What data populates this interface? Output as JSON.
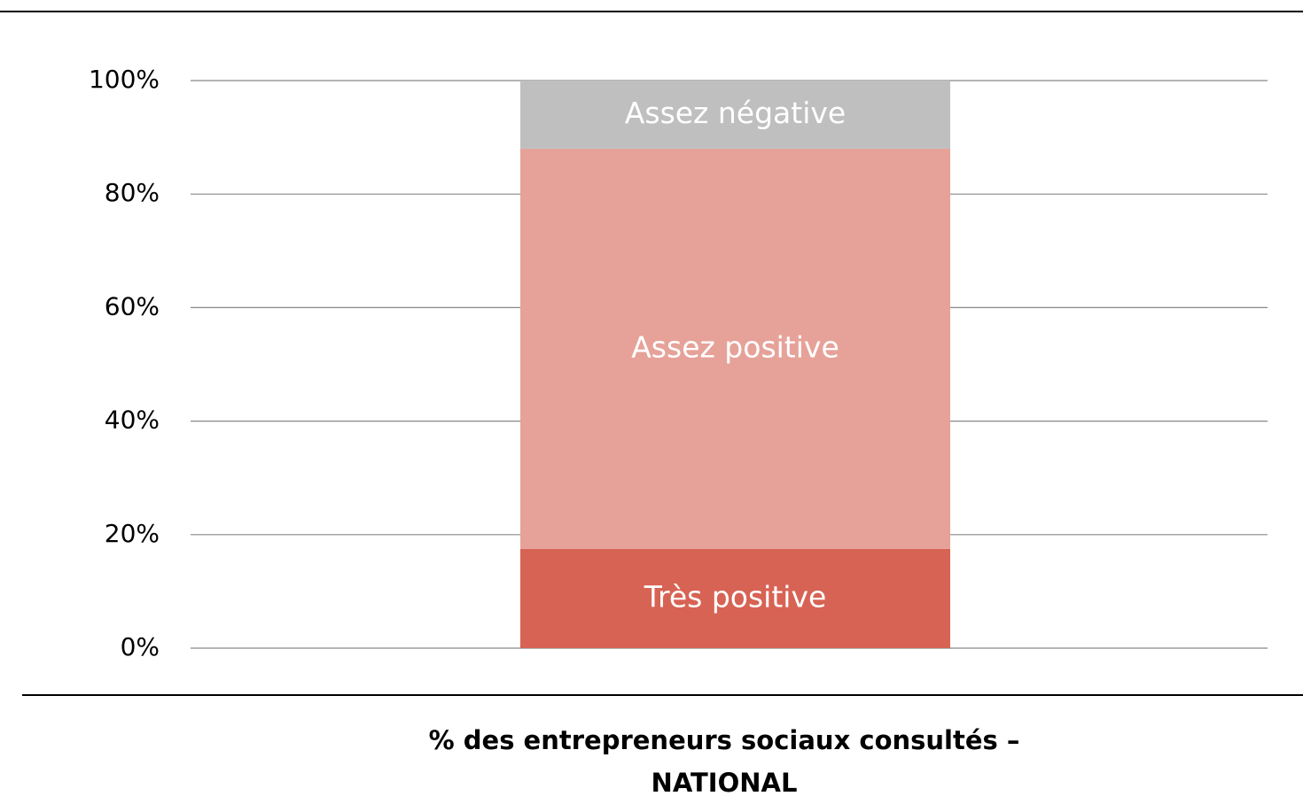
{
  "chart_data": {
    "type": "stacked_bar",
    "xlabel": "% des entrepreneurs sociaux consultés – NATIONAL",
    "categories": [
      null
    ],
    "series": [
      {
        "name": "Très positive",
        "color": "#d76354",
        "values": [
          17.5
        ]
      },
      {
        "name": "Assez positive",
        "color": "#e6a299",
        "values": [
          70.5
        ]
      },
      {
        "name": "Assez négative",
        "color": "#bfbfbf",
        "values": [
          12
        ]
      }
    ],
    "ylim": [
      0,
      100
    ],
    "yticks": [
      {
        "value": 0,
        "label": "0%"
      },
      {
        "value": 20,
        "label": "20%"
      },
      {
        "value": 40,
        "label": "40%"
      },
      {
        "value": 60,
        "label": "60%"
      },
      {
        "value": 80,
        "label": "80%"
      },
      {
        "value": 100,
        "label": "100%"
      }
    ],
    "grid": true
  }
}
